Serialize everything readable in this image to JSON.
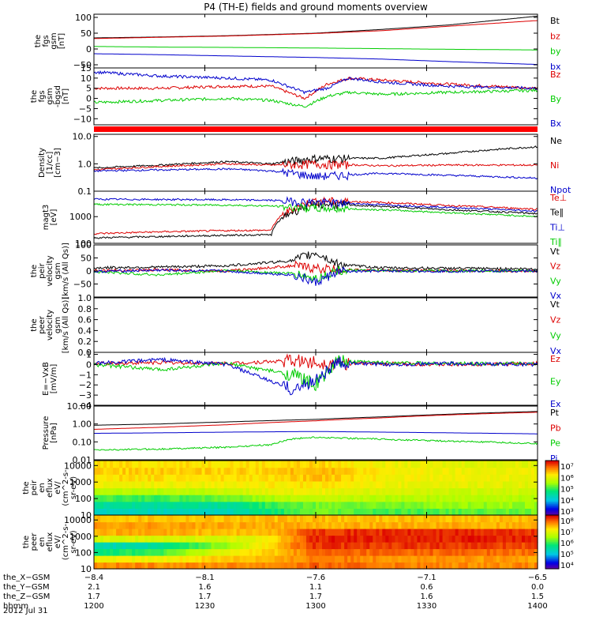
{
  "title": "P4 (TH-E) fields and ground moments overview",
  "date": "2012 Jul 31",
  "chart_data": [
    {
      "type": "line",
      "ylabel": [
        "the",
        "fgs",
        "gsm",
        "[nT]"
      ],
      "ylim": [
        -60,
        110
      ],
      "yticks": [
        100,
        50,
        0,
        -50
      ],
      "ytick_labels": [
        "100",
        "50",
        "0",
        "−50"
      ],
      "series": [
        {
          "name": "Bt",
          "color": "#000000",
          "x": [
            1200,
            1230,
            1260,
            1300,
            1330,
            1360,
            1400
          ],
          "y": [
            35,
            38,
            42,
            50,
            62,
            76,
            104
          ]
        },
        {
          "name": "bz",
          "color": "#dd0000",
          "x": [
            1200,
            1230,
            1260,
            1300,
            1330,
            1360,
            1400
          ],
          "y": [
            33,
            37,
            41,
            49,
            58,
            72,
            90
          ]
        },
        {
          "name": "by",
          "color": "#00cc00",
          "x": [
            1200,
            1230,
            1260,
            1300,
            1330,
            1360,
            1400
          ],
          "y": [
            8,
            6,
            5,
            3,
            1,
            -1,
            -3
          ]
        },
        {
          "name": "bx",
          "color": "#0000cc",
          "x": [
            1200,
            1230,
            1260,
            1300,
            1330,
            1360,
            1400
          ],
          "y": [
            -15,
            -18,
            -22,
            -27,
            -32,
            -40,
            -49
          ]
        }
      ]
    },
    {
      "type": "line",
      "ylabel": [
        "the",
        "fgs",
        "gsm",
        "-bgsd",
        "[nT]"
      ],
      "ylim": [
        -13,
        15
      ],
      "yticks": [
        15,
        10,
        5,
        0,
        -5,
        -10
      ],
      "ytick_labels": [
        "15",
        "10",
        "5",
        "0",
        "−5",
        "−10"
      ],
      "series": [
        {
          "name": "Bz",
          "color": "#dd0000",
          "x": [
            1200,
            1230,
            1260,
            1280,
            1295,
            1305,
            1315,
            1330,
            1360,
            1400
          ],
          "y": [
            5,
            5,
            6,
            6,
            0,
            7,
            10,
            9,
            7,
            5
          ]
        },
        {
          "name": "By",
          "color": "#00cc00",
          "x": [
            1200,
            1230,
            1260,
            1280,
            1295,
            1305,
            1315,
            1330,
            1360,
            1400
          ],
          "y": [
            -2,
            -1,
            0,
            -1,
            -4,
            1,
            3,
            2,
            3,
            4
          ]
        },
        {
          "name": "Bx",
          "color": "#0000cc",
          "x": [
            1200,
            1230,
            1260,
            1280,
            1295,
            1305,
            1315,
            1330,
            1360,
            1400
          ],
          "y": [
            13,
            11,
            10,
            9,
            3,
            5,
            10,
            8,
            6,
            5
          ]
        }
      ]
    },
    {
      "type": "line",
      "ylabel": [
        "Density",
        "[1/cc]",
        "[cm−3]"
      ],
      "yscale": "log",
      "ylim": [
        0.1,
        12
      ],
      "yticks": [
        10,
        1,
        0.1
      ],
      "ytick_labels": [
        "10.0",
        "1.0",
        "0.1"
      ],
      "series": [
        {
          "name": "Ne",
          "color": "#000000",
          "x": [
            1200,
            1230,
            1260,
            1280,
            1300,
            1330,
            1360,
            1400
          ],
          "y": [
            0.7,
            0.9,
            1.2,
            1.0,
            1.6,
            1.6,
            2.4,
            4.2
          ]
        },
        {
          "name": "Ni",
          "color": "#dd0000",
          "x": [
            1200,
            1230,
            1260,
            1280,
            1300,
            1330,
            1360,
            1400
          ],
          "y": [
            0.6,
            0.8,
            1.0,
            0.9,
            1.0,
            0.85,
            0.9,
            0.9
          ]
        },
        {
          "name": "Npot",
          "color": "#0000cc",
          "x": [
            1200,
            1230,
            1260,
            1280,
            1300,
            1330,
            1360,
            1400
          ],
          "y": [
            0.55,
            0.6,
            0.65,
            0.55,
            0.35,
            0.45,
            0.38,
            0.3
          ]
        }
      ]
    },
    {
      "type": "line",
      "ylabel": [
        "magt3",
        "[eV]"
      ],
      "yscale": "log",
      "ylim": [
        100,
        9000
      ],
      "yticks": [
        1000,
        100
      ],
      "ytick_labels": [
        "1000",
        "100"
      ],
      "series": [
        {
          "name": "Te⊥",
          "color": "#dd0000",
          "x": [
            1200,
            1230,
            1260,
            1280,
            1290,
            1300,
            1330,
            1360,
            1400
          ],
          "y": [
            230,
            270,
            300,
            310,
            2000,
            4000,
            3400,
            2600,
            1900
          ]
        },
        {
          "name": "Te∥",
          "color": "#000000",
          "x": [
            1200,
            1230,
            1260,
            1280,
            1290,
            1300,
            1330,
            1360,
            1400
          ],
          "y": [
            160,
            180,
            200,
            210,
            1600,
            3000,
            2400,
            1800,
            1300
          ]
        },
        {
          "name": "Ti⊥",
          "color": "#0000cc",
          "x": [
            1200,
            1230,
            1260,
            1280,
            1290,
            1300,
            1330,
            1360,
            1400
          ],
          "y": [
            4500,
            4400,
            4300,
            4100,
            3800,
            3500,
            2800,
            2200,
            1600
          ]
        },
        {
          "name": "Ti∥",
          "color": "#00cc00",
          "x": [
            1200,
            1230,
            1260,
            1280,
            1290,
            1300,
            1330,
            1360,
            1400
          ],
          "y": [
            2900,
            2800,
            2700,
            2500,
            2300,
            2100,
            1800,
            1400,
            1000
          ]
        }
      ]
    },
    {
      "type": "line",
      "ylabel": [
        "the",
        "peir",
        "velocity",
        "gsm",
        "[km/s (All Qs)]"
      ],
      "ylim": [
        -100,
        100
      ],
      "yticks": [
        100,
        50,
        0,
        -50
      ],
      "ytick_labels": [
        "100",
        "50",
        "0",
        "−50"
      ],
      "series": [
        {
          "name": "Vt",
          "color": "#000000",
          "x": [
            1200,
            1230,
            1260,
            1290,
            1300,
            1310,
            1330,
            1360,
            1400
          ],
          "y": [
            12,
            15,
            20,
            40,
            70,
            25,
            12,
            10,
            8
          ]
        },
        {
          "name": "Vz",
          "color": "#dd0000",
          "x": [
            1200,
            1230,
            1260,
            1290,
            1300,
            1310,
            1330,
            1360,
            1400
          ],
          "y": [
            2,
            4,
            0,
            20,
            10,
            5,
            2,
            1,
            0
          ]
        },
        {
          "name": "Vy",
          "color": "#00cc00",
          "x": [
            1200,
            1230,
            1260,
            1290,
            1300,
            1310,
            1330,
            1360,
            1400
          ],
          "y": [
            -3,
            -15,
            2,
            -10,
            -30,
            2,
            1,
            0,
            1
          ]
        },
        {
          "name": "Vx",
          "color": "#0000cc",
          "x": [
            1200,
            1230,
            1260,
            1290,
            1300,
            1310,
            1330,
            1360,
            1400
          ],
          "y": [
            -2,
            3,
            -1,
            -15,
            -45,
            -3,
            0,
            -1,
            0
          ]
        }
      ]
    },
    {
      "type": "line",
      "ylabel": [
        "the",
        "peer",
        "velocity",
        "gsm",
        "[km/s (All Qs)]"
      ],
      "ylim": [
        0,
        1
      ],
      "yticks": [
        1.0,
        0.8,
        0.6,
        0.4,
        0.2,
        0.0
      ],
      "ytick_labels": [
        "1.0",
        "0.8",
        "0.6",
        "0.4",
        "0.2",
        "0.0"
      ],
      "series": [
        {
          "name": "Vt",
          "color": "#000000",
          "x": [],
          "y": []
        },
        {
          "name": "Vz",
          "color": "#dd0000",
          "x": [],
          "y": []
        },
        {
          "name": "Vy",
          "color": "#00cc00",
          "x": [],
          "y": []
        },
        {
          "name": "Vx",
          "color": "#0000cc",
          "x": [],
          "y": []
        }
      ]
    },
    {
      "type": "line",
      "ylabel": [
        "E=−VxB",
        "[mV/m]"
      ],
      "ylim": [
        -4,
        1.2
      ],
      "yticks": [
        1,
        0,
        -1,
        -2,
        -3,
        -4
      ],
      "ytick_labels": [
        "1",
        "0",
        "−1",
        "−2",
        "−3",
        "−4"
      ],
      "series": [
        {
          "name": "Ez",
          "color": "#dd0000",
          "x": [
            1200,
            1230,
            1260,
            1290,
            1300,
            1310,
            1330,
            1360,
            1400
          ],
          "y": [
            0.1,
            0.2,
            0.1,
            0.4,
            0.2,
            0.1,
            0.1,
            0.0,
            0.1
          ]
        },
        {
          "name": "Ey",
          "color": "#00cc00",
          "x": [
            1200,
            1230,
            1260,
            1290,
            1300,
            1310,
            1330,
            1360,
            1400
          ],
          "y": [
            0.0,
            -0.5,
            0.1,
            -1.0,
            -2.0,
            0.3,
            0.2,
            0.1,
            0.1
          ]
        },
        {
          "name": "Ex",
          "color": "#0000cc",
          "x": [
            1200,
            1230,
            1260,
            1290,
            1300,
            1310,
            1330,
            1360,
            1400
          ],
          "y": [
            0.1,
            0.5,
            0.0,
            -2.5,
            -1.5,
            0.2,
            0.0,
            0.1,
            0.0
          ]
        }
      ]
    },
    {
      "type": "line",
      "ylabel": [
        "Pressure",
        "[nPa]"
      ],
      "yscale": "log",
      "ylim": [
        0.01,
        10
      ],
      "yticks": [
        10,
        1,
        0.1,
        0.01
      ],
      "ytick_labels": [
        "10.00",
        "1.00",
        "0.10",
        "0.01"
      ],
      "series": [
        {
          "name": "Pt",
          "color": "#000000",
          "x": [
            1200,
            1230,
            1260,
            1300,
            1330,
            1360,
            1400
          ],
          "y": [
            0.85,
            1.0,
            1.3,
            1.8,
            2.5,
            3.5,
            5.0
          ]
        },
        {
          "name": "Pb",
          "color": "#dd0000",
          "x": [
            1200,
            1230,
            1260,
            1300,
            1330,
            1360,
            1400
          ],
          "y": [
            0.5,
            0.65,
            0.9,
            1.5,
            2.2,
            3.2,
            4.5
          ]
        },
        {
          "name": "Pe",
          "color": "#00cc00",
          "x": [
            1200,
            1230,
            1260,
            1280,
            1290,
            1300,
            1330,
            1360,
            1400
          ],
          "y": [
            0.035,
            0.04,
            0.05,
            0.07,
            0.15,
            0.18,
            0.14,
            0.11,
            0.08
          ]
        },
        {
          "name": "Pi",
          "color": "#0000cc",
          "x": [
            1200,
            1230,
            1260,
            1300,
            1330,
            1360,
            1400
          ],
          "y": [
            0.3,
            0.32,
            0.35,
            0.38,
            0.35,
            0.32,
            0.28
          ]
        }
      ]
    },
    {
      "type": "heatmap",
      "ylabel": [
        "the",
        "peir",
        "en",
        "eflux",
        "eV/",
        "(cm^2-s-",
        "sr-eV)"
      ],
      "yscale": "log",
      "ylim": [
        10,
        20000
      ],
      "yticks": [
        10000,
        1000,
        100,
        10
      ],
      "ytick_labels": [
        "10000",
        "1000",
        "100",
        "10"
      ],
      "colorbar": {
        "min_exp": 3,
        "max_exp": 7,
        "labels": [
          "10⁷",
          "10⁶",
          "10⁵",
          "10⁴",
          "10³"
        ]
      },
      "x": [
        1200,
        1230,
        1260,
        1280,
        1300,
        1330,
        1360,
        1400
      ],
      "levels_by_energy_bin_low_to_high": [
        [
          0.35,
          0.35,
          0.35,
          0.45,
          0.55,
          0.5,
          0.52,
          0.55
        ],
        [
          0.4,
          0.4,
          0.4,
          0.5,
          0.55,
          0.55,
          0.58,
          0.58
        ],
        [
          0.5,
          0.5,
          0.55,
          0.6,
          0.65,
          0.62,
          0.62,
          0.62
        ],
        [
          0.62,
          0.62,
          0.65,
          0.7,
          0.72,
          0.68,
          0.66,
          0.66
        ],
        [
          0.72,
          0.72,
          0.72,
          0.74,
          0.76,
          0.72,
          0.7,
          0.7
        ],
        [
          0.76,
          0.76,
          0.76,
          0.76,
          0.8,
          0.74,
          0.72,
          0.72
        ],
        [
          0.78,
          0.78,
          0.78,
          0.78,
          0.82,
          0.74,
          0.72,
          0.72
        ],
        [
          0.76,
          0.76,
          0.76,
          0.76,
          0.78,
          0.72,
          0.7,
          0.7
        ]
      ]
    },
    {
      "type": "heatmap",
      "ylabel": [
        "the",
        "peer",
        "en",
        "eflux",
        "eV/",
        "(cm^2-s-",
        "sr-eV)"
      ],
      "yscale": "log",
      "ylim": [
        10,
        20000
      ],
      "yticks": [
        10000,
        1000,
        100,
        10
      ],
      "ytick_labels": [
        "10000",
        "1000",
        "100",
        "10"
      ],
      "colorbar": {
        "min_exp": 4,
        "max_exp": 8,
        "labels": [
          "10⁸",
          "10⁷",
          "10⁶",
          "10⁵",
          "10⁴"
        ]
      },
      "x": [
        1200,
        1230,
        1260,
        1280,
        1300,
        1330,
        1360,
        1400
      ],
      "levels_by_energy_bin_low_to_high": [
        [
          0.86,
          0.86,
          0.86,
          0.86,
          0.9,
          0.88,
          0.86,
          0.86
        ],
        [
          0.72,
          0.72,
          0.8,
          0.8,
          0.88,
          0.86,
          0.84,
          0.84
        ],
        [
          0.45,
          0.5,
          0.72,
          0.78,
          0.9,
          0.9,
          0.9,
          0.88
        ],
        [
          0.35,
          0.4,
          0.6,
          0.78,
          0.95,
          0.95,
          0.95,
          0.93
        ],
        [
          0.68,
          0.68,
          0.68,
          0.74,
          0.97,
          0.97,
          0.97,
          0.97
        ],
        [
          0.82,
          0.82,
          0.8,
          0.8,
          0.95,
          0.96,
          0.96,
          0.95
        ],
        [
          0.84,
          0.84,
          0.82,
          0.82,
          0.82,
          0.82,
          0.82,
          0.82
        ],
        [
          0.8,
          0.8,
          0.8,
          0.8,
          0.8,
          0.8,
          0.8,
          0.8
        ]
      ]
    }
  ],
  "xaxis": {
    "xlim": [
      1200,
      1400
    ],
    "tick_hhmm": [
      "1200",
      "1230",
      "1300",
      "1330",
      "1400"
    ],
    "rows": [
      {
        "label": "the_X−GSM",
        "values": [
          "−8.4",
          "−8.1",
          "−7.6",
          "−7.1",
          "−6.5"
        ]
      },
      {
        "label": "the_Y−GSM",
        "values": [
          "2.1",
          "1.6",
          "1.1",
          "0.6",
          "0.0"
        ]
      },
      {
        "label": "the_Z−GSM",
        "values": [
          "1.7",
          "1.7",
          "1.7",
          "1.6",
          "1.5"
        ]
      },
      {
        "label": "hhmm",
        "values": [
          "1200",
          "1230",
          "1300",
          "1330",
          "1400"
        ]
      }
    ]
  }
}
